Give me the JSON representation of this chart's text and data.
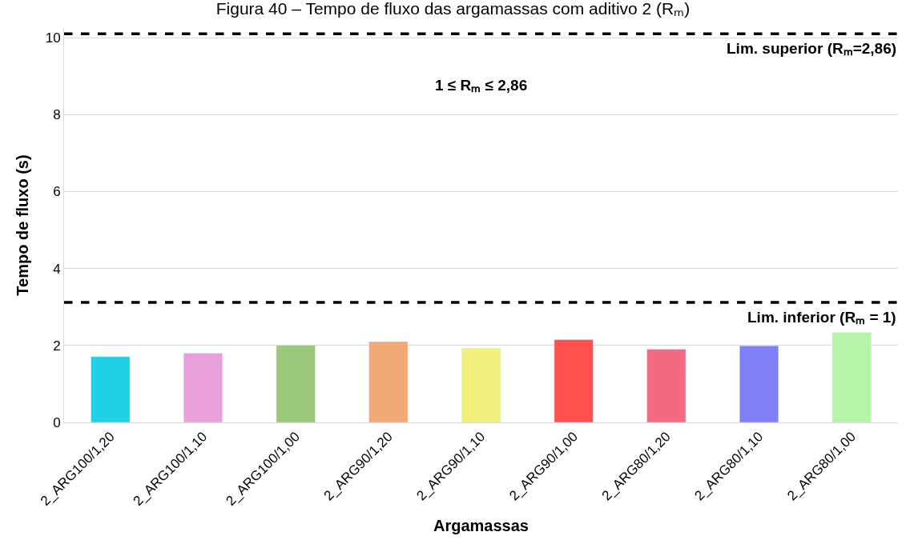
{
  "chart_data": {
    "type": "bar",
    "title": "Figura 40 – Tempo de fluxo das argamassas com aditivo 2 (Rₘ)",
    "xlabel": "Argamassas",
    "ylabel": "Tempo de fluxo (s)",
    "categories": [
      "2_ARG100/1,20",
      "2_ARG100/1,10",
      "2_ARG100/1,00",
      "2_ARG90/1,20",
      "2_ARG90/1,10",
      "2_ARG90/1,00",
      "2_ARG80/1,20",
      "2_ARG80/1,10",
      "2_ARG80/1,00"
    ],
    "values": [
      1.71,
      1.8,
      2.0,
      2.1,
      1.93,
      2.15,
      1.9,
      1.99,
      2.34
    ],
    "colors": [
      "#1fd0e6",
      "#e8a0da",
      "#9bc77a",
      "#f3a877",
      "#f0f07a",
      "#ff5050",
      "#f26a80",
      "#7f7ff8",
      "#b6f5a8"
    ],
    "ylim": [
      0,
      10.25
    ],
    "yticks": [
      0,
      2,
      4,
      6,
      8,
      10
    ],
    "grid": "y",
    "ref_lines": [
      {
        "axis": "y",
        "value": 10.1,
        "color": "#000000",
        "line_style": "dashed"
      },
      {
        "axis": "y",
        "value": 3.12,
        "color": "#000000",
        "line_style": "dashed"
      }
    ],
    "annotations": [
      {
        "text": "Lim. superior (Rₘ=2,86)",
        "y": 10.1
      },
      {
        "text": "Lim. inferior (Rₘ = 1)",
        "y": 3.12
      },
      "1 ≤ Rₘ ≤ 2,86"
    ]
  }
}
